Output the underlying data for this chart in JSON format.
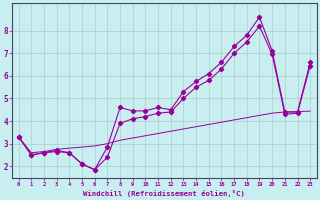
{
  "xlabel": "Windchill (Refroidissement éolien,°C)",
  "bg_color": "#c8eef0",
  "grid_color": "#aacccc",
  "line_color": "#990099",
  "x_ticks": [
    0,
    1,
    2,
    3,
    4,
    5,
    6,
    7,
    8,
    9,
    10,
    11,
    12,
    13,
    14,
    15,
    16,
    17,
    18,
    19,
    20,
    21,
    22,
    23
  ],
  "y_ticks": [
    2,
    3,
    4,
    5,
    6,
    7,
    8
  ],
  "xlim": [
    -0.5,
    23.5
  ],
  "ylim": [
    1.5,
    9.2
  ],
  "series1_x": [
    0,
    1,
    2,
    3,
    4,
    5,
    6,
    7,
    8,
    9,
    10,
    11,
    12,
    13,
    14,
    15,
    16,
    17,
    18,
    19,
    20,
    21,
    22,
    23
  ],
  "series1_y": [
    3.3,
    2.5,
    2.6,
    2.7,
    2.6,
    2.1,
    1.85,
    2.85,
    4.6,
    4.45,
    4.45,
    4.6,
    4.5,
    5.3,
    5.75,
    6.1,
    6.6,
    7.3,
    7.8,
    8.6,
    7.1,
    4.4,
    4.4,
    6.6
  ],
  "series2_x": [
    0,
    1,
    2,
    3,
    4,
    5,
    6,
    7,
    8,
    9,
    10,
    11,
    12,
    13,
    14,
    15,
    16,
    17,
    18,
    19,
    20,
    21,
    22,
    23
  ],
  "series2_y": [
    3.3,
    2.5,
    2.6,
    2.65,
    2.6,
    2.1,
    1.85,
    2.4,
    3.9,
    4.1,
    4.2,
    4.35,
    4.4,
    5.0,
    5.5,
    5.8,
    6.3,
    7.0,
    7.5,
    8.2,
    6.95,
    4.3,
    4.35,
    6.45
  ],
  "series3_x": [
    0,
    1,
    2,
    3,
    4,
    5,
    6,
    7,
    8,
    9,
    10,
    11,
    12,
    13,
    14,
    15,
    16,
    17,
    18,
    19,
    20,
    21,
    22,
    23
  ],
  "series3_y": [
    3.3,
    2.6,
    2.65,
    2.75,
    2.8,
    2.85,
    2.9,
    3.0,
    3.15,
    3.25,
    3.35,
    3.45,
    3.55,
    3.65,
    3.75,
    3.85,
    3.95,
    4.05,
    4.15,
    4.25,
    4.35,
    4.4,
    4.42,
    4.44
  ]
}
